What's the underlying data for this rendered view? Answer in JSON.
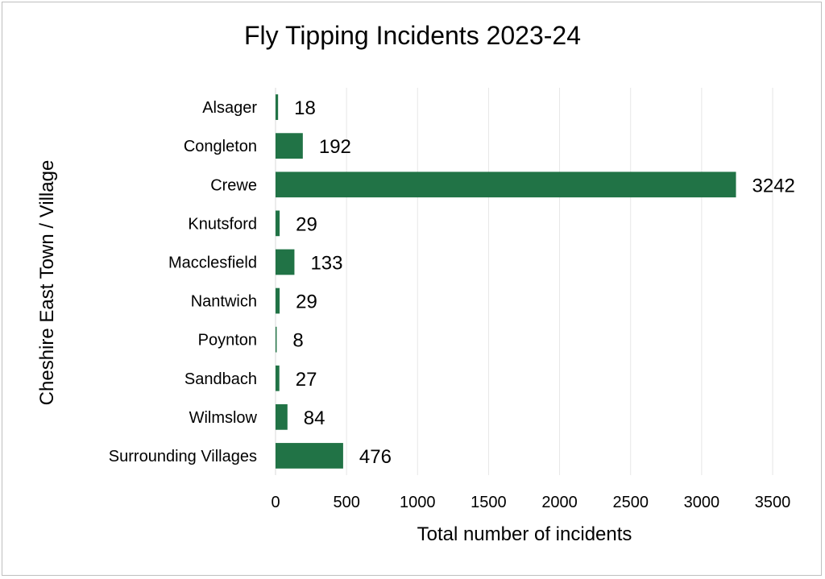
{
  "chart_data": {
    "type": "bar",
    "orientation": "horizontal",
    "title": "Fly Tipping Incidents 2023-24",
    "xlabel": "Total number of incidents",
    "ylabel": "Cheshire East Town / Village",
    "categories": [
      "Alsager",
      "Congleton",
      "Crewe",
      "Knutsford",
      "Macclesfield",
      "Nantwich",
      "Poynton",
      "Sandbach",
      "Wilmslow",
      "Surrounding Villages"
    ],
    "values": [
      18,
      192,
      3242,
      29,
      133,
      29,
      8,
      27,
      84,
      476
    ],
    "xlim": [
      0,
      3500
    ],
    "xticks": [
      0,
      500,
      1000,
      1500,
      2000,
      2500,
      3000,
      3500
    ],
    "grid": true,
    "data_labels": true,
    "bar_color": "#217346"
  }
}
